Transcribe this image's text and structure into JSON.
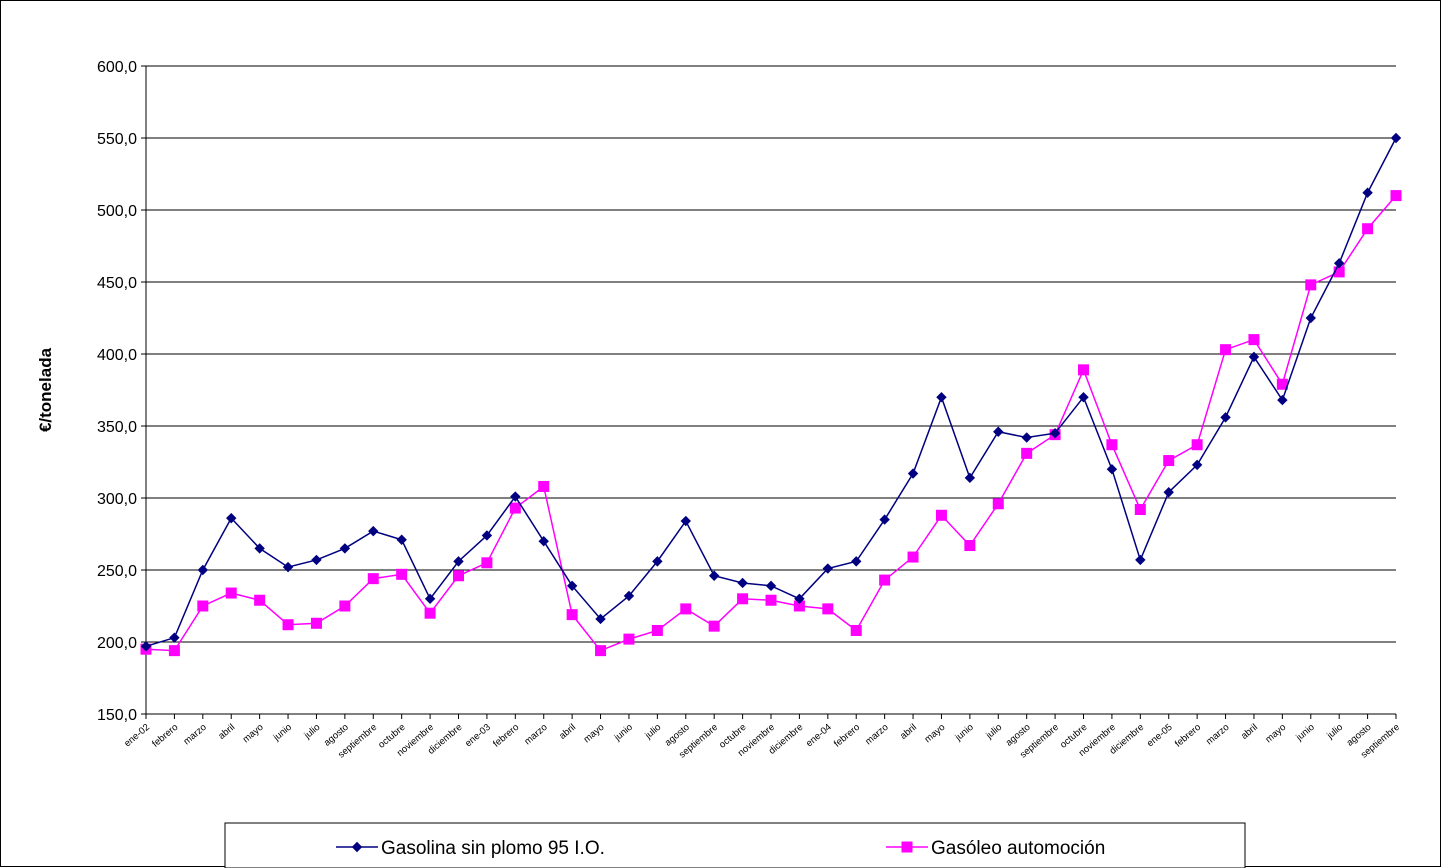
{
  "chart_data": {
    "type": "line",
    "title": "",
    "xlabel": "",
    "ylabel": "€/tonelada",
    "ylim": [
      150,
      600
    ],
    "yticks": [
      "150,0",
      "200,0",
      "250,0",
      "300,0",
      "350,0",
      "400,0",
      "450,0",
      "500,0",
      "550,0",
      "600,0"
    ],
    "ytick_values": [
      150,
      200,
      250,
      300,
      350,
      400,
      450,
      500,
      550,
      600
    ],
    "grid": "horizontal",
    "legend_position": "bottom",
    "categories": [
      "ene-02",
      "febrero",
      "marzo",
      "abril",
      "mayo",
      "junio",
      "julio",
      "agosto",
      "septiembre",
      "octubre",
      "noviembre",
      "diciembre",
      "ene-03",
      "febrero",
      "marzo",
      "abril",
      "mayo",
      "junio",
      "julio",
      "agosto",
      "septiembre",
      "octubre",
      "noviembre",
      "diciembre",
      "ene-04",
      "febrero",
      "marzo",
      "abril",
      "mayo",
      "junio",
      "julio",
      "agosto",
      "septiembre",
      "octubre",
      "noviembre",
      "diciembre",
      "ene-05",
      "febrero",
      "marzo",
      "abril",
      "mayo",
      "junio",
      "julio",
      "agosto",
      "septiembre"
    ],
    "series": [
      {
        "name": "Gasolina sin plomo 95 I.O.",
        "color": "#000080",
        "marker": "diamond",
        "values": [
          197,
          203,
          250,
          286,
          265,
          252,
          257,
          265,
          277,
          271,
          230,
          256,
          274,
          301,
          270,
          239,
          216,
          232,
          256,
          284,
          246,
          241,
          239,
          230,
          251,
          256,
          285,
          317,
          370,
          314,
          346,
          342,
          345,
          370,
          320,
          257,
          304,
          323,
          356,
          398,
          368,
          425,
          463,
          512,
          550
        ]
      },
      {
        "name": "Gasóleo automoción",
        "color": "#FF00FF",
        "marker": "square",
        "values": [
          195,
          194,
          225,
          234,
          229,
          212,
          213,
          225,
          244,
          247,
          220,
          246,
          255,
          293,
          308,
          219,
          194,
          202,
          208,
          223,
          211,
          230,
          229,
          225,
          223,
          208,
          243,
          259,
          288,
          267,
          296,
          331,
          344,
          389,
          337,
          292,
          326,
          337,
          403,
          410,
          379,
          448,
          457,
          487,
          510
        ]
      }
    ]
  }
}
